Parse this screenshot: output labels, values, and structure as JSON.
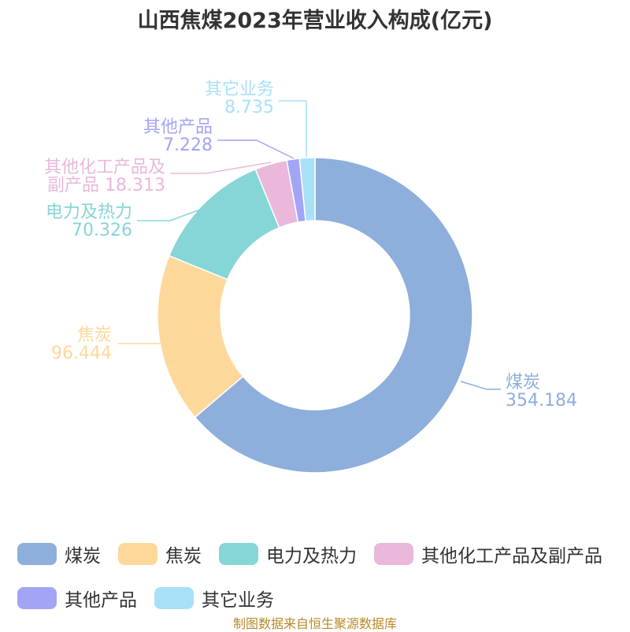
{
  "chart_data": {
    "type": "pie",
    "variant": "donut",
    "title": "山西焦煤2023年营业收入构成(亿元)",
    "unit": "亿元",
    "legend_position": "bottom",
    "source": "制图数据来自恒生聚源数据库",
    "slices": [
      {
        "name": "煤炭",
        "value": 354.184,
        "value_label": "354.184",
        "color": "#8eaedb",
        "label_lines": [
          "煤炭",
          "354.184"
        ]
      },
      {
        "name": "焦炭",
        "value": 96.444,
        "value_label": "96.444",
        "color": "#fed89b",
        "label_lines": [
          "焦炭",
          "96.444"
        ]
      },
      {
        "name": "电力及热力",
        "value": 70.326,
        "value_label": "70.326",
        "color": "#86d5d7",
        "label_lines": [
          "电力及热力",
          "70.326"
        ]
      },
      {
        "name": "其他化工产品及副产品",
        "value": 18.313,
        "value_label": "18.313",
        "color": "#e9b8db",
        "label_lines": [
          "其他化工产品及",
          "副产品 18.313"
        ]
      },
      {
        "name": "其他产品",
        "value": 7.228,
        "value_label": "7.228",
        "color": "#a2a4f6",
        "label_lines": [
          "其他产品",
          "7.228"
        ]
      },
      {
        "name": "其它业务",
        "value": 8.735,
        "value_label": "8.735",
        "color": "#a8e0f8",
        "label_lines": [
          "其它业务",
          "8.735"
        ]
      }
    ]
  }
}
